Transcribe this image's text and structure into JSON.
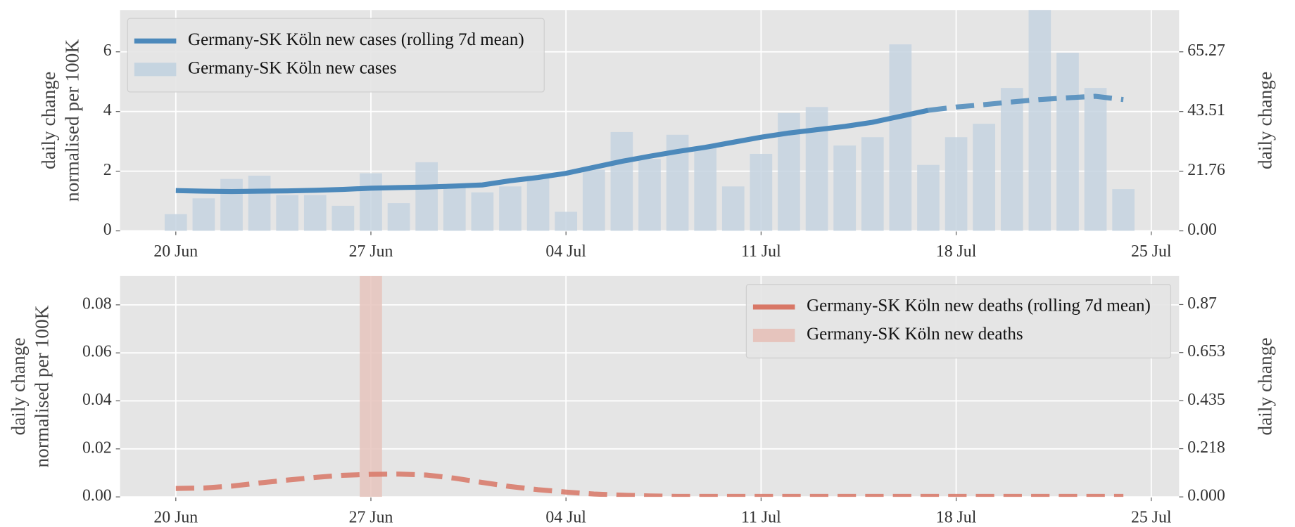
{
  "chart_data": [
    {
      "type": "combo",
      "ylabel": [
        "daily change",
        "normalised per 100K"
      ],
      "y2label": "daily change",
      "x": [
        "20 Jun",
        "21 Jun",
        "22 Jun",
        "23 Jun",
        "24 Jun",
        "25 Jun",
        "26 Jun",
        "27 Jun",
        "28 Jun",
        "29 Jun",
        "30 Jun",
        "1 Jul",
        "2 Jul",
        "3 Jul",
        "4 Jul",
        "5 Jul",
        "6 Jul",
        "7 Jul",
        "8 Jul",
        "9 Jul",
        "10 Jul",
        "11 Jul",
        "12 Jul",
        "13 Jul",
        "14 Jul",
        "15 Jul",
        "16 Jul",
        "17 Jul",
        "18 Jul",
        "19 Jul",
        "20 Jul",
        "21 Jul",
        "22 Jul",
        "23 Jul",
        "24 Jul"
      ],
      "xlim": [
        "18 Jun",
        "26 Jul"
      ],
      "xticks": [
        "20 Jun",
        "27 Jun",
        "04 Jul",
        "11 Jul",
        "18 Jul",
        "25 Jul"
      ],
      "ylim": [
        0,
        7.4
      ],
      "yticks": [
        0,
        2,
        4,
        6
      ],
      "y2lim": [
        0,
        80.5
      ],
      "y2ticks": [
        {
          "value": 0,
          "label": "0.00"
        },
        21.76,
        43.51,
        65.27
      ],
      "grid": true,
      "legend": "upper left",
      "series": [
        {
          "name": "Germany-SK Köln new cases (rolling 7d mean)",
          "kind": "line",
          "color": "#4c89bb",
          "dashed_from": "17 Jul",
          "values": [
            1.35,
            1.33,
            1.32,
            1.33,
            1.34,
            1.36,
            1.39,
            1.43,
            1.45,
            1.47,
            1.5,
            1.54,
            1.68,
            1.79,
            1.93,
            2.13,
            2.33,
            2.5,
            2.66,
            2.8,
            2.97,
            3.14,
            3.28,
            3.39,
            3.5,
            3.64,
            3.84,
            4.04,
            4.15,
            4.23,
            4.32,
            4.4,
            4.46,
            4.51,
            4.4
          ]
        },
        {
          "name": "Germany-SK Köln new cases",
          "kind": "bar",
          "color": "#c5d4e0",
          "values": [
            0.56,
            1.09,
            1.74,
            1.85,
            1.2,
            1.2,
            0.84,
            1.93,
            0.93,
            2.3,
            1.51,
            1.29,
            1.49,
            1.85,
            0.64,
            2.05,
            3.31,
            2.41,
            3.22,
            2.83,
            1.49,
            2.58,
            3.95,
            4.15,
            2.86,
            3.14,
            6.25,
            2.21,
            3.14,
            3.59,
            4.79,
            7.8,
            5.97,
            4.79,
            1.4
          ]
        }
      ]
    },
    {
      "type": "combo",
      "ylabel": [
        "daily change",
        "normalised per 100K"
      ],
      "y2label": "daily change",
      "x": [
        "20 Jun",
        "21 Jun",
        "22 Jun",
        "23 Jun",
        "24 Jun",
        "25 Jun",
        "26 Jun",
        "27 Jun",
        "28 Jun",
        "29 Jun",
        "30 Jun",
        "1 Jul",
        "2 Jul",
        "3 Jul",
        "4 Jul",
        "5 Jul",
        "6 Jul",
        "7 Jul",
        "8 Jul",
        "9 Jul",
        "10 Jul",
        "11 Jul",
        "12 Jul",
        "13 Jul",
        "14 Jul",
        "15 Jul",
        "16 Jul",
        "17 Jul",
        "18 Jul",
        "19 Jul",
        "20 Jul",
        "21 Jul",
        "22 Jul",
        "23 Jul",
        "24 Jul"
      ],
      "xlim": [
        "18 Jun",
        "26 Jul"
      ],
      "xticks": [
        "20 Jun",
        "27 Jun",
        "04 Jul",
        "11 Jul",
        "18 Jul",
        "25 Jul"
      ],
      "ylim": [
        0,
        0.092
      ],
      "yticks": [
        {
          "value": 0,
          "label": "0.00"
        },
        0.02,
        0.04,
        0.06,
        0.08
      ],
      "y2lim": [
        0,
        0.999
      ],
      "y2ticks": [
        {
          "value": 0,
          "label": "0.000"
        },
        0.218,
        0.435,
        0.653,
        0.87
      ],
      "grid": true,
      "legend": "upper right",
      "series": [
        {
          "name": "Germany-SK Köln new deaths (rolling 7d mean)",
          "kind": "line",
          "color": "#d87766",
          "dashed_from": "20 Jun",
          "values": [
            0.0035,
            0.0037,
            0.0045,
            0.0058,
            0.007,
            0.0081,
            0.009,
            0.0094,
            0.0095,
            0.0091,
            0.0078,
            0.006,
            0.0043,
            0.003,
            0.002,
            0.0012,
            0.0007,
            0.0004,
            0.0002,
            0.0002,
            0.0002,
            0.0002,
            0.0002,
            0.0002,
            0.0002,
            0.0002,
            0.0002,
            0.0002,
            0.0002,
            0.0002,
            0.0002,
            0.0002,
            0.0002,
            0.0002,
            0.0002
          ]
        },
        {
          "name": "Germany-SK Köln new deaths",
          "kind": "bar",
          "color": "#e6c4bd",
          "values": [
            0,
            0,
            0,
            0,
            0,
            0,
            0,
            0.092,
            0,
            0,
            0,
            0,
            0,
            0,
            0,
            0,
            0,
            0,
            0,
            0,
            0,
            0,
            0,
            0,
            0,
            0,
            0,
            0,
            0,
            0,
            0,
            0,
            0,
            0,
            0
          ]
        }
      ]
    }
  ]
}
